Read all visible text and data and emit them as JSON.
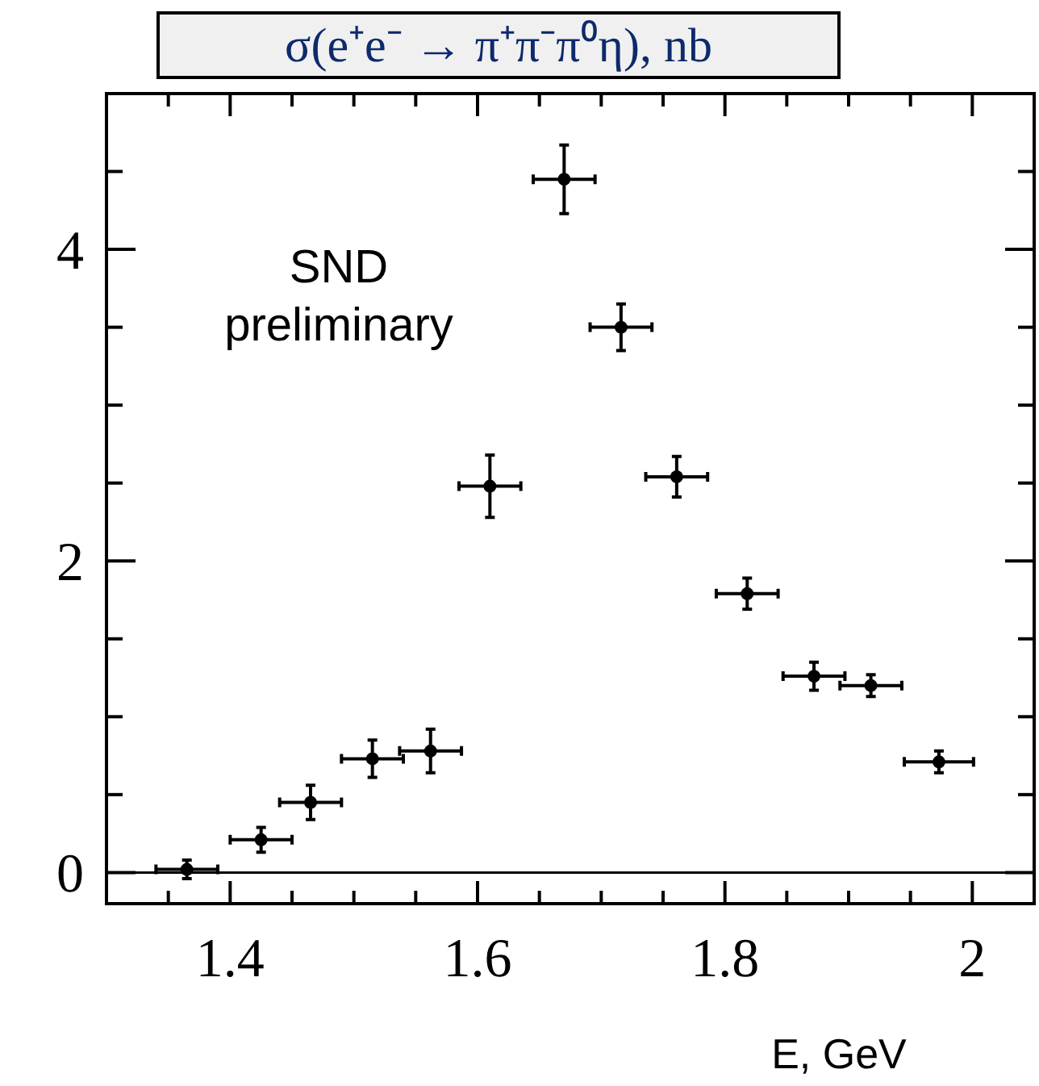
{
  "chart_data": {
    "type": "scatter",
    "title": "σ(e⁺e⁻ → π⁺π⁻π⁰η), nb",
    "xlabel": "E, GeV",
    "annotations": [
      "SND\npreliminary"
    ],
    "x": [
      1.365,
      1.425,
      1.465,
      1.515,
      1.562,
      1.61,
      1.67,
      1.716,
      1.761,
      1.818,
      1.872,
      1.918,
      1.973
    ],
    "values": [
      0.02,
      0.21,
      0.45,
      0.73,
      0.78,
      2.48,
      4.45,
      3.5,
      2.54,
      1.79,
      1.26,
      1.2,
      0.71
    ],
    "errors": [
      0.06,
      0.08,
      0.11,
      0.12,
      0.14,
      0.2,
      0.22,
      0.15,
      0.13,
      0.1,
      0.09,
      0.07,
      0.07
    ],
    "xerrors": [
      0.025,
      0.025,
      0.025,
      0.025,
      0.025,
      0.025,
      0.025,
      0.025,
      0.025,
      0.025,
      0.025,
      0.025,
      0.028
    ],
    "color": "#000000",
    "marker": "circle",
    "ref_lines": [
      {
        "axis": "y",
        "value": 0,
        "color": "#000000"
      }
    ],
    "xlim": [
      1.3,
      2.05
    ],
    "xticks": [
      {
        "value": 1.35,
        "label": null
      },
      1.4,
      {
        "value": 1.45,
        "label": null
      },
      {
        "value": 1.5,
        "label": null
      },
      {
        "value": 1.55,
        "label": null
      },
      1.6,
      {
        "value": 1.65,
        "label": null
      },
      {
        "value": 1.7,
        "label": null
      },
      {
        "value": 1.75,
        "label": null
      },
      1.8,
      {
        "value": 1.85,
        "label": null
      },
      {
        "value": 1.9,
        "label": null
      },
      {
        "value": 1.95,
        "label": null
      },
      2
    ],
    "ylim": [
      -0.2,
      5
    ],
    "yticks": [
      0,
      {
        "value": 0.5,
        "label": null
      },
      {
        "value": 1,
        "label": null
      },
      {
        "value": 1.5,
        "label": null
      },
      2,
      {
        "value": 2.5,
        "label": null
      },
      {
        "value": 3,
        "label": null
      },
      {
        "value": 3.5,
        "label": null
      },
      4,
      {
        "value": 4.5,
        "label": null
      }
    ]
  }
}
